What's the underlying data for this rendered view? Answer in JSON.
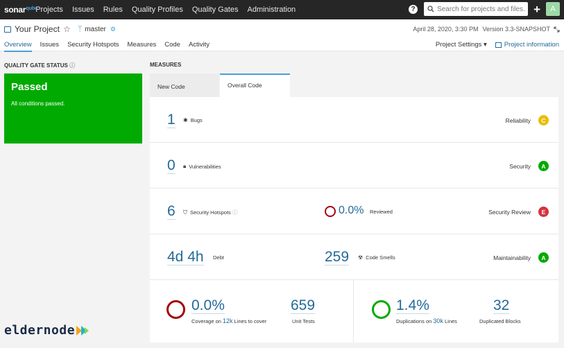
{
  "topnav": {
    "logo_main": "sonar",
    "logo_sub": "qube",
    "links": [
      "Projects",
      "Issues",
      "Rules",
      "Quality Profiles",
      "Quality Gates",
      "Administration"
    ],
    "search_placeholder": "Search for projects and files...",
    "help_glyph": "?",
    "add_glyph": "+",
    "avatar_letter": "A"
  },
  "project": {
    "name": "Your Project",
    "branch": "master",
    "date": "April 28, 2020, 3:30 PM",
    "version": "Version 3.3-SNAPSHOT",
    "tabs": [
      "Overview",
      "Issues",
      "Security Hotspots",
      "Measures",
      "Code",
      "Activity"
    ],
    "active_tab": "Overview",
    "settings_label": "Project Settings",
    "info_label": "Project information"
  },
  "quality_gate": {
    "title": "QUALITY GATE STATUS",
    "status": "Passed",
    "description": "All conditions passed.",
    "color": "#00aa00"
  },
  "measures": {
    "title": "MEASURES",
    "tabs": [
      "New Code",
      "Overall Code"
    ],
    "active_tab": "Overall Code",
    "bugs": {
      "value": "1",
      "label": "Bugs",
      "rating_label": "Reliability",
      "rating": "C",
      "rating_color": "#eabe06"
    },
    "vulnerabilities": {
      "value": "0",
      "label": "Vulnerabilities",
      "rating_label": "Security",
      "rating": "A",
      "rating_color": "#00aa00"
    },
    "hotspots": {
      "value": "6",
      "label": "Security Hotspots",
      "reviewed_value": "0.0%",
      "reviewed_label": "Reviewed",
      "rating_label": "Security Review",
      "rating": "E",
      "rating_color": "#d4333f"
    },
    "debt": {
      "value": "4d 4h",
      "label": "Debt",
      "smells_value": "259",
      "smells_label": "Code Smells",
      "rating_label": "Maintainability",
      "rating": "A",
      "rating_color": "#00aa00"
    },
    "coverage": {
      "value": "0.0%",
      "label_prefix": "Coverage on",
      "lines": "12k",
      "label_suffix": "Lines to cover",
      "unit_tests": "659",
      "unit_tests_label": "Unit Tests",
      "ring_color": "#a4030f"
    },
    "duplications": {
      "value": "1.4%",
      "label_prefix": "Duplications on",
      "lines": "30k",
      "label_suffix": "Lines",
      "blocks": "32",
      "blocks_label": "Duplicated Blocks",
      "ring_color": "#00aa00"
    }
  },
  "watermark": "eldernode"
}
